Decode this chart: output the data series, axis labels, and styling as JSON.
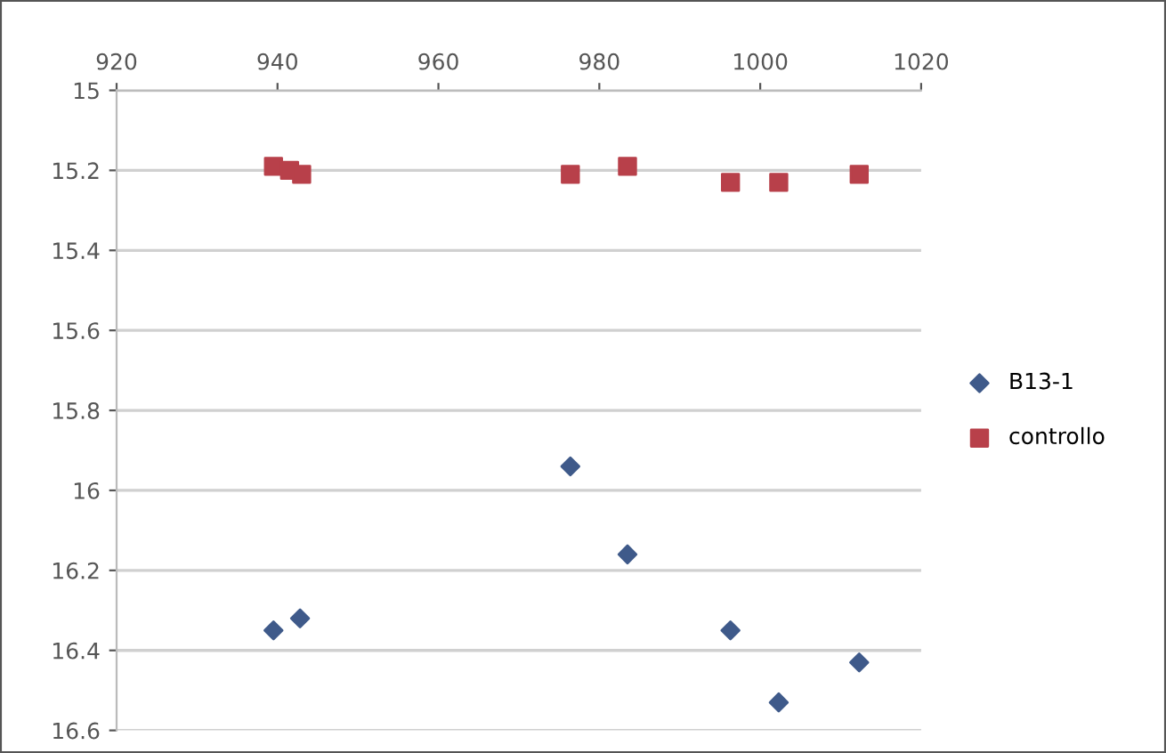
{
  "chart_data": {
    "type": "scatter",
    "series": [
      {
        "name": "B13-1",
        "color": "#3f5a8a",
        "marker": "diamond",
        "x": [
          939.5,
          942.8,
          976.4,
          983.5,
          996.3,
          1002.3,
          1012.3
        ],
        "values": [
          16.35,
          16.32,
          15.94,
          16.16,
          16.35,
          16.53,
          16.43
        ]
      },
      {
        "name": "controllo",
        "color": "#b8404a",
        "marker": "square",
        "x": [
          939.5,
          941.5,
          943,
          976.4,
          983.5,
          996.3,
          1002.3,
          1012.3
        ],
        "values": [
          15.19,
          15.2,
          15.21,
          15.21,
          15.19,
          15.23,
          15.23,
          15.21
        ]
      }
    ],
    "xlim": [
      920,
      1020
    ],
    "xticks": [
      920,
      940,
      960,
      980,
      1000,
      1020
    ],
    "ylim": [
      16.6,
      15
    ],
    "yticks": [
      15,
      15.2,
      15.4,
      15.6,
      15.8,
      16,
      16.2,
      16.4,
      16.6
    ],
    "grid": "y",
    "legend": "right"
  }
}
